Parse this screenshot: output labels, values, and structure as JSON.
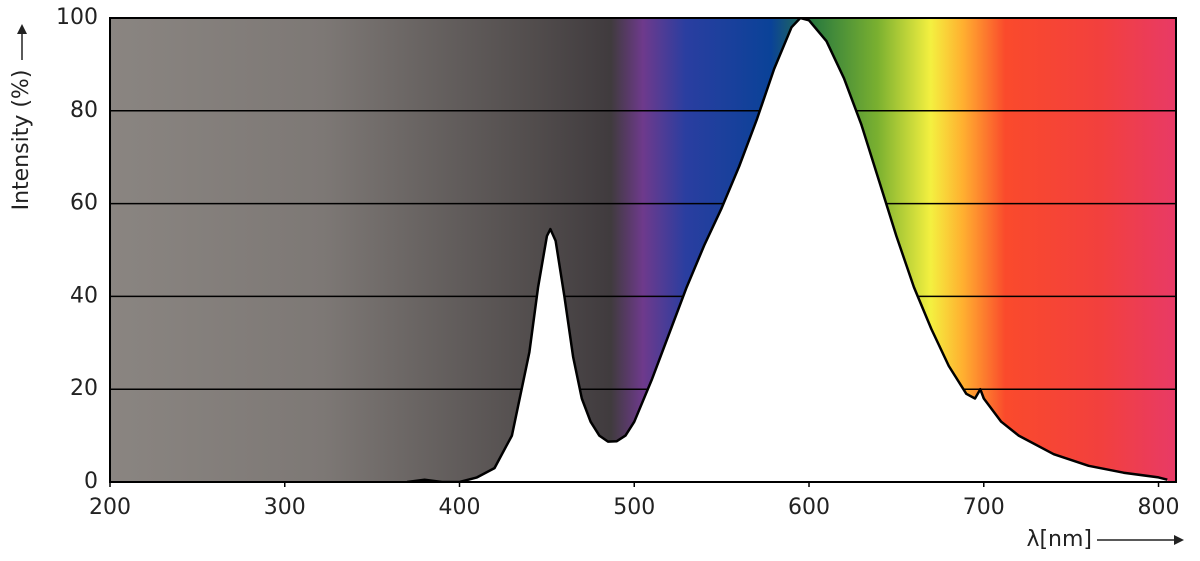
{
  "chart_data": {
    "type": "line",
    "y_label": "Intensity (%)",
    "x_label": "λ[nm]",
    "xlim": [
      200,
      810
    ],
    "ylim": [
      0,
      100
    ],
    "xticks": [
      200,
      300,
      400,
      500,
      600,
      700,
      800
    ],
    "yticks": [
      0,
      20,
      40,
      60,
      80,
      100
    ],
    "grid": true,
    "series": [
      {
        "color": "#000000",
        "x": [
          370,
          380,
          390,
          400,
          410,
          420,
          430,
          440,
          445,
          450,
          452,
          455,
          460,
          465,
          470,
          475,
          480,
          485,
          490,
          495,
          500,
          510,
          520,
          530,
          540,
          550,
          560,
          570,
          580,
          590,
          595,
          600,
          610,
          620,
          630,
          640,
          650,
          660,
          670,
          680,
          690,
          695,
          698,
          700,
          710,
          720,
          740,
          760,
          780,
          800,
          805
        ],
        "values": [
          0,
          0.5,
          0,
          0,
          1,
          3,
          10,
          28,
          42,
          53,
          54.5,
          52,
          40,
          27,
          18,
          13,
          10,
          8.7,
          8.8,
          10,
          13,
          22,
          32,
          42,
          51,
          59,
          68,
          78,
          89,
          98,
          100,
          99.5,
          95,
          87,
          77,
          65,
          53,
          42,
          33,
          25,
          19,
          18,
          20,
          18,
          13,
          10,
          6,
          3.5,
          2,
          1,
          0.5
        ]
      }
    ]
  }
}
